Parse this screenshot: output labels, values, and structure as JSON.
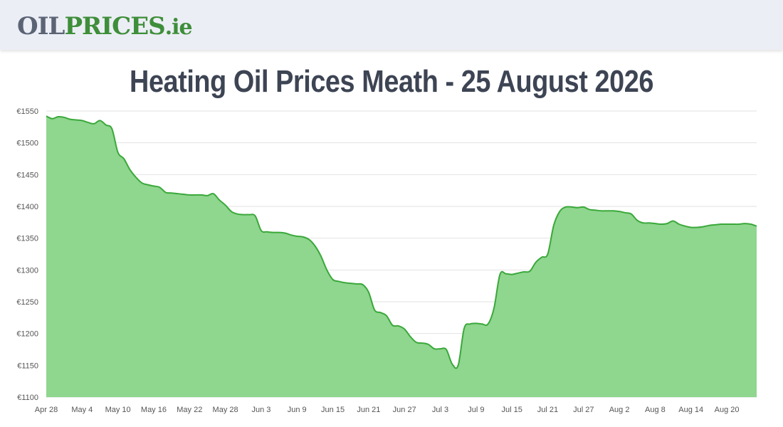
{
  "header": {
    "logo_part1": "OIL",
    "logo_part2": "PRICES",
    "logo_part3": ".ie"
  },
  "page_title": "Heating Oil Prices Meath - 25 August 2026",
  "colors": {
    "line": "#3aa83a",
    "fill": "#8fd68e",
    "grid": "#e2e2e2",
    "header_bg": "#eceef5"
  },
  "chart_data": {
    "type": "area",
    "title": "",
    "xlabel": "",
    "ylabel": "",
    "ylim": [
      1100,
      1550
    ],
    "y_ticks": [
      "€1550",
      "€1500",
      "€1450",
      "€1400",
      "€1350",
      "€1300",
      "€1250",
      "€1200",
      "€1150",
      "€1100"
    ],
    "x_ticks": [
      "Apr 28",
      "May 4",
      "May 10",
      "May 16",
      "May 22",
      "May 28",
      "Jun 3",
      "Jun 9",
      "Jun 15",
      "Jun 21",
      "Jun 27",
      "Jul 3",
      "Jul 9",
      "Jul 15",
      "Jul 21",
      "Jul 27",
      "Aug 2",
      "Aug 8",
      "Aug 14",
      "Aug 20"
    ],
    "grid": true,
    "legend": "none",
    "series": [
      {
        "x": [
          "Apr 28",
          "Apr 29",
          "Apr 30",
          "May 1",
          "May 2",
          "May 3",
          "May 4",
          "May 5",
          "May 6",
          "May 7",
          "May 8",
          "May 9",
          "May 10",
          "May 11",
          "May 12",
          "May 13",
          "May 14",
          "May 15",
          "May 16",
          "May 17",
          "May 18",
          "May 19",
          "May 20",
          "May 21",
          "May 22",
          "May 23",
          "May 24",
          "May 25",
          "May 26",
          "May 27",
          "May 28",
          "May 29",
          "May 30",
          "May 31",
          "Jun 1",
          "Jun 2",
          "Jun 3",
          "Jun 4",
          "Jun 5",
          "Jun 6",
          "Jun 7",
          "Jun 8",
          "Jun 9",
          "Jun 10",
          "Jun 11",
          "Jun 12",
          "Jun 13",
          "Jun 14",
          "Jun 15",
          "Jun 16",
          "Jun 17",
          "Jun 18",
          "Jun 19",
          "Jun 20",
          "Jun 21",
          "Jun 22",
          "Jun 23",
          "Jun 24",
          "Jun 25",
          "Jun 26",
          "Jun 27",
          "Jun 28",
          "Jun 29",
          "Jun 30",
          "Jul 1",
          "Jul 2",
          "Jul 3",
          "Jul 4",
          "Jul 5",
          "Jul 6",
          "Jul 7",
          "Jul 8",
          "Jul 9",
          "Jul 10",
          "Jul 11",
          "Jul 12",
          "Jul 13",
          "Jul 14",
          "Jul 15",
          "Jul 16",
          "Jul 17",
          "Jul 18",
          "Jul 19",
          "Jul 20",
          "Jul 21",
          "Jul 22",
          "Jul 23",
          "Jul 24",
          "Jul 25",
          "Jul 26",
          "Jul 27",
          "Jul 28",
          "Jul 29",
          "Jul 30",
          "Jul 31",
          "Aug 1",
          "Aug 2",
          "Aug 3",
          "Aug 4",
          "Aug 5",
          "Aug 6",
          "Aug 7",
          "Aug 8",
          "Aug 9",
          "Aug 10",
          "Aug 11",
          "Aug 12",
          "Aug 13",
          "Aug 14",
          "Aug 15",
          "Aug 16",
          "Aug 17",
          "Aug 18",
          "Aug 19",
          "Aug 20",
          "Aug 21",
          "Aug 22",
          "Aug 23",
          "Aug 24",
          "Aug 25"
        ],
        "values": [
          1542,
          1538,
          1541,
          1540,
          1537,
          1536,
          1535,
          1532,
          1530,
          1535,
          1528,
          1522,
          1485,
          1475,
          1458,
          1446,
          1437,
          1434,
          1432,
          1430,
          1422,
          1421,
          1420,
          1419,
          1418,
          1418,
          1418,
          1417,
          1420,
          1410,
          1402,
          1392,
          1388,
          1387,
          1387,
          1385,
          1362,
          1360,
          1359,
          1359,
          1358,
          1355,
          1353,
          1352,
          1348,
          1338,
          1322,
          1300,
          1285,
          1282,
          1280,
          1279,
          1278,
          1277,
          1265,
          1237,
          1233,
          1228,
          1213,
          1212,
          1207,
          1195,
          1186,
          1185,
          1183,
          1176,
          1176,
          1175,
          1152,
          1150,
          1208,
          1215,
          1216,
          1215,
          1215,
          1240,
          1293,
          1294,
          1293,
          1295,
          1297,
          1298,
          1312,
          1320,
          1325,
          1370,
          1392,
          1399,
          1399,
          1398,
          1399,
          1395,
          1394,
          1393,
          1393,
          1393,
          1392,
          1390,
          1388,
          1378,
          1374,
          1374,
          1373,
          1372,
          1373,
          1377,
          1372,
          1369,
          1367,
          1367,
          1368,
          1370,
          1371,
          1372,
          1372,
          1372,
          1372,
          1373,
          1372,
          1369
        ]
      }
    ]
  }
}
